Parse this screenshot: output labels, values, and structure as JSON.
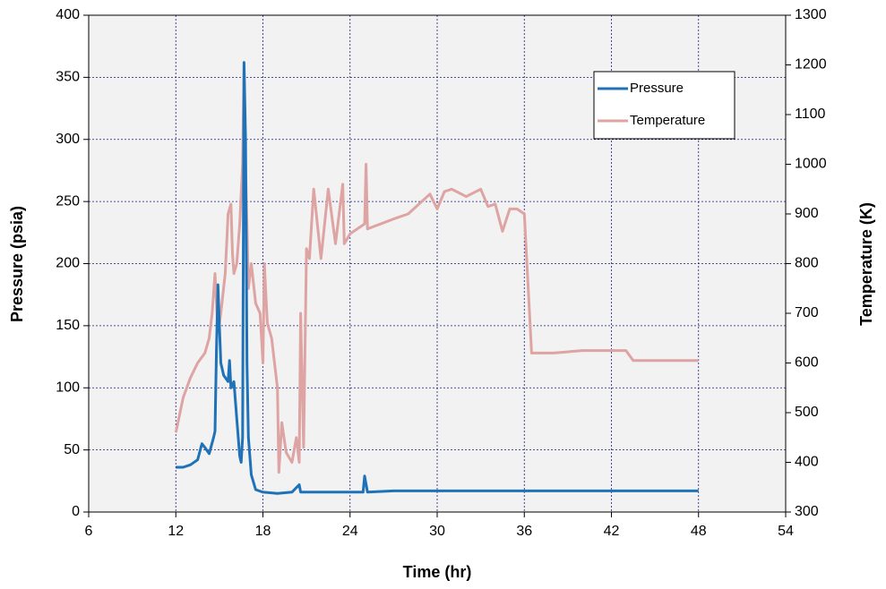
{
  "chart_data": {
    "type": "line",
    "x_label": "Time (hr)",
    "y_label": "Pressure (psia)",
    "y2_label": "Temperature (K)",
    "xlim": [
      6,
      54
    ],
    "xticks": [
      6,
      12,
      18,
      24,
      30,
      36,
      42,
      48,
      54
    ],
    "ylim": [
      0,
      400
    ],
    "yticks": [
      0,
      50,
      100,
      150,
      200,
      250,
      300,
      350,
      400
    ],
    "y2lim": [
      300,
      1300
    ],
    "y2ticks": [
      300,
      400,
      500,
      600,
      700,
      800,
      900,
      1000,
      1100,
      1200,
      1300
    ],
    "grid": true,
    "legend": "upper right",
    "series": [
      {
        "name": "Pressure",
        "color": "#1f72b8",
        "axis": "y",
        "x": [
          12.0,
          12.5,
          13.0,
          13.5,
          13.8,
          14.0,
          14.3,
          14.6,
          14.7,
          14.8,
          14.9,
          15.0,
          15.1,
          15.3,
          15.6,
          15.7,
          15.8,
          16.0,
          16.2,
          16.4,
          16.5,
          16.6,
          16.7,
          16.8,
          16.9,
          17.0,
          17.2,
          17.5,
          18.0,
          19.0,
          20.0,
          20.5,
          20.6,
          22.0,
          24.0,
          24.9,
          25.0,
          25.2,
          27.0,
          48.0
        ],
        "values": [
          36,
          36,
          38,
          42,
          55,
          52,
          47,
          60,
          65,
          130,
          183,
          150,
          120,
          110,
          105,
          122,
          100,
          105,
          75,
          45,
          40,
          60,
          362,
          300,
          120,
          60,
          30,
          18,
          16,
          15,
          16,
          22,
          16,
          16,
          16,
          16,
          29,
          16,
          17,
          17
        ]
      },
      {
        "name": "Temperature",
        "color": "#dea3a3",
        "axis": "y2",
        "x": [
          12.0,
          12.5,
          13.0,
          13.5,
          14.0,
          14.3,
          14.5,
          14.7,
          14.9,
          15.1,
          15.4,
          15.6,
          15.8,
          15.9,
          16.0,
          16.2,
          16.4,
          16.6,
          16.7,
          16.8,
          17.0,
          17.2,
          17.5,
          17.8,
          18.0,
          18.1,
          18.3,
          18.6,
          19.0,
          19.1,
          19.3,
          19.6,
          20.0,
          20.3,
          20.5,
          20.6,
          20.8,
          21.0,
          21.2,
          21.5,
          22.0,
          22.5,
          23.0,
          23.5,
          23.6,
          24.0,
          25.0,
          25.1,
          25.2,
          27.0,
          28.0,
          29.5,
          30.0,
          30.5,
          31.0,
          32.0,
          33.0,
          33.5,
          34.0,
          34.5,
          35.0,
          35.5,
          36.0,
          36.5,
          38.0,
          40.0,
          43.0,
          43.5,
          46.0,
          48.0
        ],
        "values": [
          460,
          530,
          570,
          600,
          620,
          650,
          700,
          780,
          660,
          700,
          780,
          900,
          920,
          820,
          780,
          800,
          880,
          1000,
          1200,
          1000,
          750,
          800,
          720,
          700,
          600,
          800,
          680,
          650,
          550,
          380,
          480,
          420,
          400,
          450,
          400,
          700,
          430,
          830,
          810,
          950,
          810,
          950,
          840,
          960,
          840,
          860,
          880,
          1000,
          870,
          890,
          900,
          940,
          910,
          945,
          950,
          935,
          950,
          915,
          920,
          865,
          910,
          910,
          900,
          620,
          620,
          625,
          625,
          605,
          605,
          605
        ]
      }
    ]
  }
}
